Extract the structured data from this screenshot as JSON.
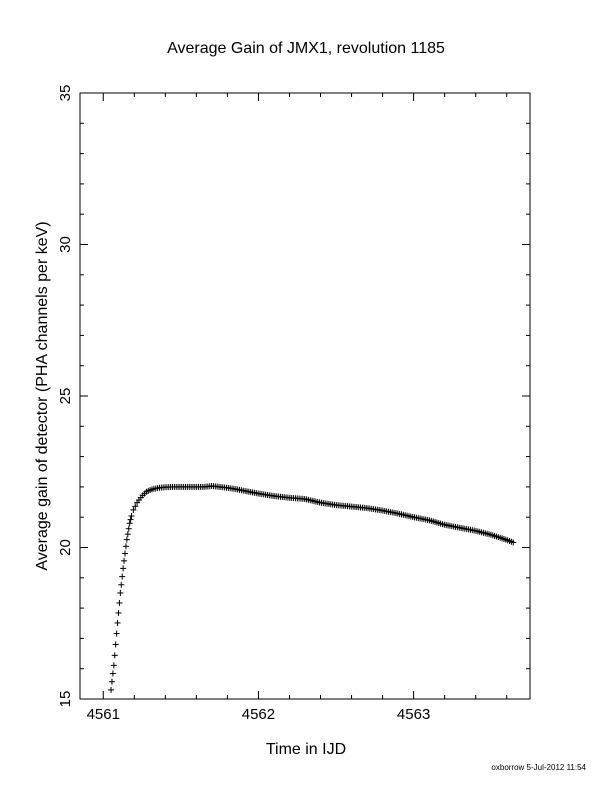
{
  "chart_data": {
    "type": "scatter",
    "marker": "plus",
    "title": "Average Gain of JMX1, revolution 1185",
    "xlabel": "Time in IJD",
    "ylabel": "Average gain of detector (PHA channels per keV)",
    "xlim": [
      4560.85,
      4563.75
    ],
    "ylim": [
      15,
      35
    ],
    "xticks": [
      4561,
      4562,
      4563
    ],
    "xtick_labels": [
      "4561",
      "4562",
      "4563"
    ],
    "yticks": [
      15,
      20,
      25,
      30,
      35
    ],
    "ytick_labels": [
      "15",
      "20",
      "25",
      "30",
      "35"
    ],
    "grid": false,
    "series": [
      {
        "x": [
          4561.05,
          4561.07,
          4561.09,
          4561.11,
          4561.13,
          4561.15,
          4561.17,
          4561.19,
          4561.22,
          4561.25,
          4561.28,
          4561.32,
          4561.36,
          4561.4,
          4561.45,
          4561.5,
          4561.55,
          4561.6,
          4561.65,
          4561.7,
          4561.75,
          4561.8,
          4561.85,
          4561.9,
          4561.95,
          4562.0,
          4562.1,
          4562.2,
          4562.3,
          4562.4,
          4562.5,
          4562.6,
          4562.7,
          4562.8,
          4562.9,
          4563.0,
          4563.1,
          4563.2,
          4563.3,
          4563.4,
          4563.5,
          4563.6,
          4563.65
        ],
        "y": [
          15.3,
          16.2,
          17.4,
          18.5,
          19.4,
          20.2,
          20.8,
          21.2,
          21.5,
          21.7,
          21.85,
          21.93,
          21.97,
          21.99,
          22.0,
          22.0,
          22.0,
          22.0,
          22.0,
          22.03,
          22.0,
          21.97,
          21.93,
          21.88,
          21.83,
          21.78,
          21.7,
          21.64,
          21.6,
          21.48,
          21.4,
          21.35,
          21.3,
          21.22,
          21.12,
          21.0,
          20.9,
          20.75,
          20.65,
          20.55,
          20.42,
          20.25,
          20.15
        ]
      }
    ],
    "footer": "oxborrow  5-Jul-2012 11:54"
  }
}
